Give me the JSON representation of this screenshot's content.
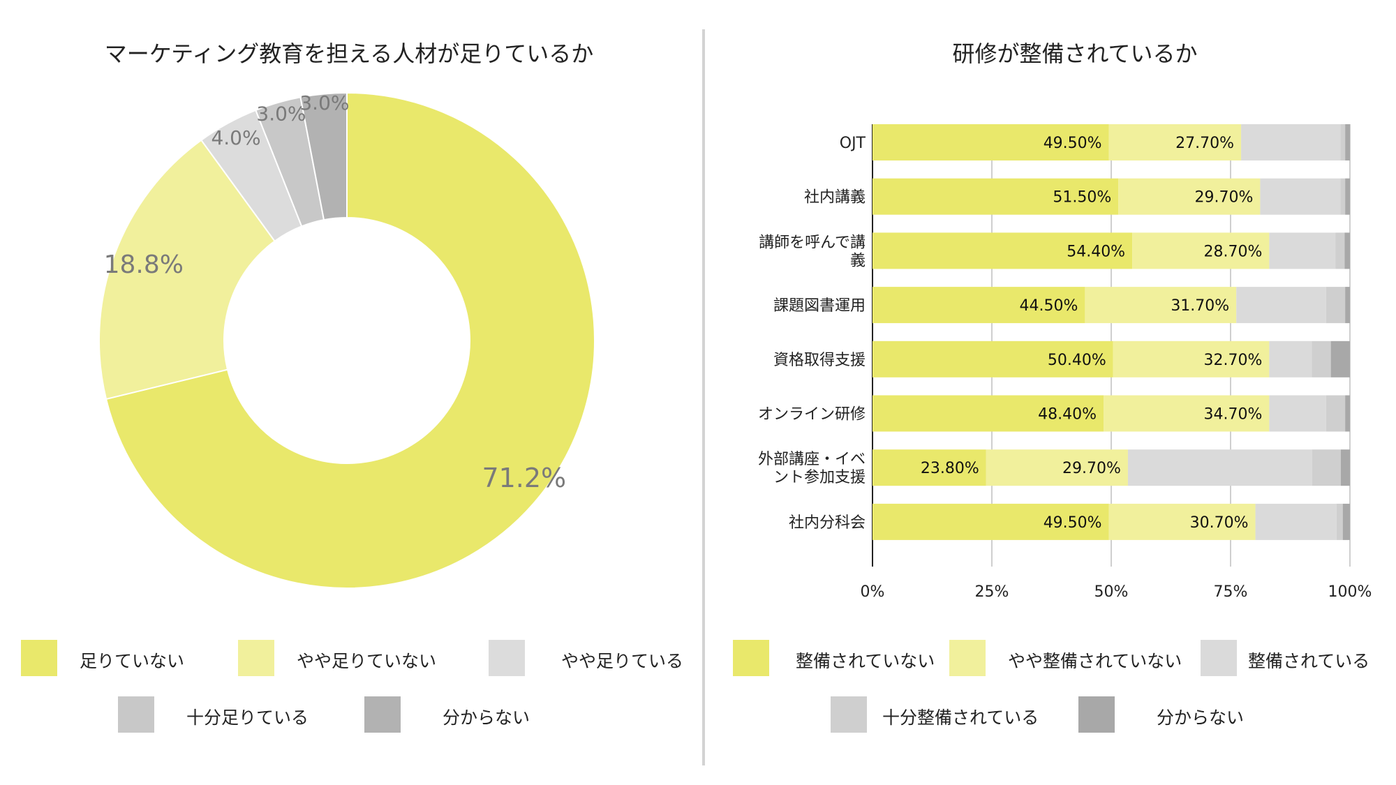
{
  "chart_data": [
    {
      "type": "pie",
      "variant": "donut",
      "title": "マーケティング教育を担える人材が足りているか",
      "categories": [
        "足りていない",
        "やや足りていない",
        "やや足りている",
        "十分足りている",
        "分からない"
      ],
      "values": [
        71.2,
        18.8,
        4.0,
        3.0,
        3.0
      ],
      "labels": [
        "71.2%",
        "18.8%",
        "4.0%",
        "3.0%",
        "3.0%"
      ],
      "colors": [
        "#e9e86b",
        "#f1f09c",
        "#dcdcdc",
        "#c8c8c8",
        "#b2b2b2"
      ],
      "legend_position": "bottom"
    },
    {
      "type": "bar",
      "orientation": "horizontal",
      "stacked": true,
      "title": "研修が整備されているか",
      "categories": [
        "OJT",
        "社内講義",
        "講師を呼んで講義",
        "課題図書運用",
        "資格取得支援",
        "オンライン研修",
        "外部講座・イベント参加支援",
        "社内分科会"
      ],
      "series": [
        {
          "name": "整備されていない",
          "color": "#e9e86b",
          "values": [
            49.5,
            51.5,
            54.4,
            44.5,
            50.4,
            48.4,
            23.8,
            49.5
          ],
          "labels": [
            "49.50%",
            "51.50%",
            "54.40%",
            "44.50%",
            "50.40%",
            "48.40%",
            "23.80%",
            "49.50%"
          ]
        },
        {
          "name": "やや整備されていない",
          "color": "#f1f09c",
          "values": [
            27.7,
            29.7,
            28.7,
            31.7,
            32.7,
            34.7,
            29.7,
            30.7
          ],
          "labels": [
            "27.70%",
            "29.70%",
            "28.70%",
            "31.70%",
            "32.70%",
            "34.70%",
            "29.70%",
            "30.70%"
          ]
        },
        {
          "name": "整備されている",
          "color": "#dadada",
          "values": [
            20.8,
            16.8,
            13.9,
            18.8,
            8.9,
            11.9,
            38.6,
            17.0
          ]
        },
        {
          "name": "十分整備されている",
          "color": "#cfcfcf",
          "values": [
            1.0,
            1.0,
            1.9,
            4.0,
            4.0,
            4.0,
            6.0,
            1.3
          ]
        },
        {
          "name": "分からない",
          "color": "#a8a8a8",
          "values": [
            1.0,
            1.0,
            1.1,
            1.0,
            4.0,
            1.0,
            1.9,
            1.5
          ]
        }
      ],
      "xlim": [
        0,
        100
      ],
      "xticks": [
        "0%",
        "25%",
        "50%",
        "75%",
        "100%"
      ],
      "grid": true,
      "legend_position": "bottom"
    }
  ]
}
